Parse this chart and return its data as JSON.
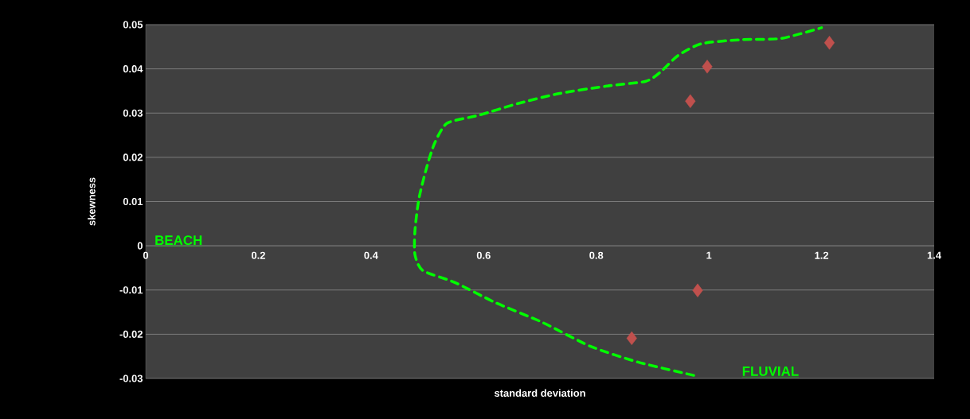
{
  "chart_data": {
    "type": "scatter",
    "xlabel": "standard deviation",
    "ylabel": "skewness",
    "xlim": [
      0,
      1.4
    ],
    "ylim": [
      -0.03,
      0.05
    ],
    "xticks": [
      0,
      0.2,
      0.4,
      0.6,
      0.8,
      1,
      1.2,
      1.4
    ],
    "yticks": [
      -0.03,
      -0.02,
      -0.01,
      0,
      0.01,
      0.02,
      0.03,
      0.04,
      0.05
    ],
    "grid": "y",
    "series": [
      {
        "color": "#c0504d",
        "marker": "diamond",
        "x": [
          1.214,
          0.997,
          0.967,
          0.98,
          0.863
        ],
        "values": [
          0.0459,
          0.0405,
          0.0327,
          -0.0101,
          -0.0209
        ]
      },
      {
        "type": "line",
        "color": "#00ff00",
        "line_style": "dashed",
        "marker": "none",
        "x": [
          0.973,
          0.874,
          0.789,
          0.704,
          0.62,
          0.549,
          0.492,
          0.478,
          0.478,
          0.485,
          0.499,
          0.513,
          0.535,
          0.591,
          0.662,
          0.733,
          0.818,
          0.888,
          0.915,
          0.945,
          0.987,
          1.058,
          1.129,
          1.2
        ],
        "values": [
          -0.0293,
          -0.0263,
          -0.0227,
          -0.0173,
          -0.0128,
          -0.0083,
          -0.0056,
          -0.002,
          0.0034,
          0.0106,
          0.0178,
          0.0232,
          0.0277,
          0.0295,
          0.0322,
          0.0344,
          0.0361,
          0.0372,
          0.0394,
          0.043,
          0.0457,
          0.0466,
          0.0469,
          0.0493
        ]
      }
    ],
    "annotations": [
      "BEACH",
      "FLUVIAL"
    ]
  }
}
